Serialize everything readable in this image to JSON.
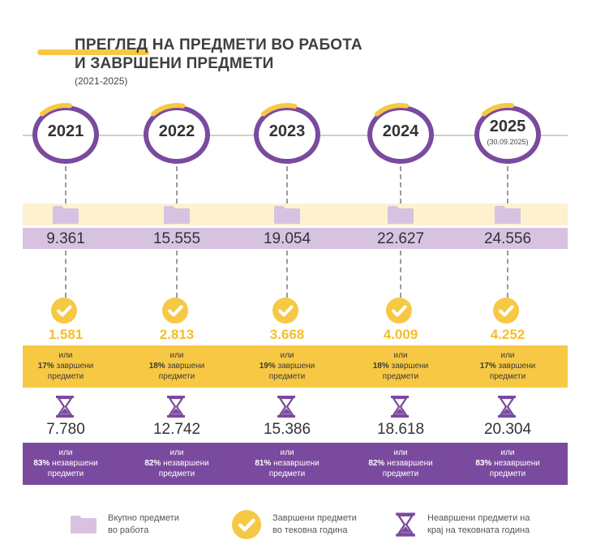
{
  "header": {
    "title_line1": "ПРЕГЛЕД НА ПРЕДМЕТИ ВО РАБОТА",
    "title_line2": "И ЗАВРШЕНИ ПРЕДМЕТИ",
    "subtitle": "(2021-2025)"
  },
  "colors": {
    "purple": "#7a4a9e",
    "yellow": "#f7c844",
    "lilac": "#d8c2e1",
    "cream": "#fdf1cf"
  },
  "years": [
    {
      "year": "2021",
      "note": "",
      "total": "9.361",
      "completed": "1.581",
      "completed_word": "или",
      "completed_pct": "17%",
      "completed_label": "завршени",
      "completed_label2": "предмети",
      "open": "7.780",
      "open_word": "или",
      "open_pct": "83%",
      "open_label": "незавршени",
      "open_label2": "предмети",
      "arc_fraction": 0.17
    },
    {
      "year": "2022",
      "note": "",
      "total": "15.555",
      "completed": "2.813",
      "completed_word": "или",
      "completed_pct": "18%",
      "completed_label": "завршени",
      "completed_label2": "предмети",
      "open": "12.742",
      "open_word": "или",
      "open_pct": "82%",
      "open_label": "незавршени",
      "open_label2": "предмети",
      "arc_fraction": 0.18
    },
    {
      "year": "2023",
      "note": "",
      "total": "19.054",
      "completed": "3.668",
      "completed_word": "или",
      "completed_pct": "19%",
      "completed_label": "завршени",
      "completed_label2": "предмети",
      "open": "15.386",
      "open_word": "или",
      "open_pct": "81%",
      "open_label": "незавршени",
      "open_label2": "предмети",
      "arc_fraction": 0.19
    },
    {
      "year": "2024",
      "note": "",
      "total": "22.627",
      "completed": "4.009",
      "completed_word": "или",
      "completed_pct": "18%",
      "completed_label": "завршени",
      "completed_label2": "предмети",
      "open": "18.618",
      "open_word": "или",
      "open_pct": "82%",
      "open_label": "незавршени",
      "open_label2": "предмети",
      "arc_fraction": 0.18
    },
    {
      "year": "2025",
      "note": "(30.09.2025)",
      "total": "24.556",
      "completed": "4.252",
      "completed_word": "или",
      "completed_pct": "17%",
      "completed_label": "завршени",
      "completed_label2": "предмети",
      "open": "20.304",
      "open_word": "или",
      "open_pct": "83%",
      "open_label": "незавршени",
      "open_label2": "предмети",
      "arc_fraction": 0.17
    }
  ],
  "legend": {
    "folder_icon": "folder-icon",
    "folder_line1": "Вкупно предмети",
    "folder_line2": "во работа",
    "check_icon": "checkmark-icon",
    "check_line1": "Завршени предмети",
    "check_line2": "во тековна година",
    "hourglass_icon": "hourglass-icon",
    "hourglass_line1": "Неавршени предмети на",
    "hourglass_line2": "крај на тековната година"
  }
}
